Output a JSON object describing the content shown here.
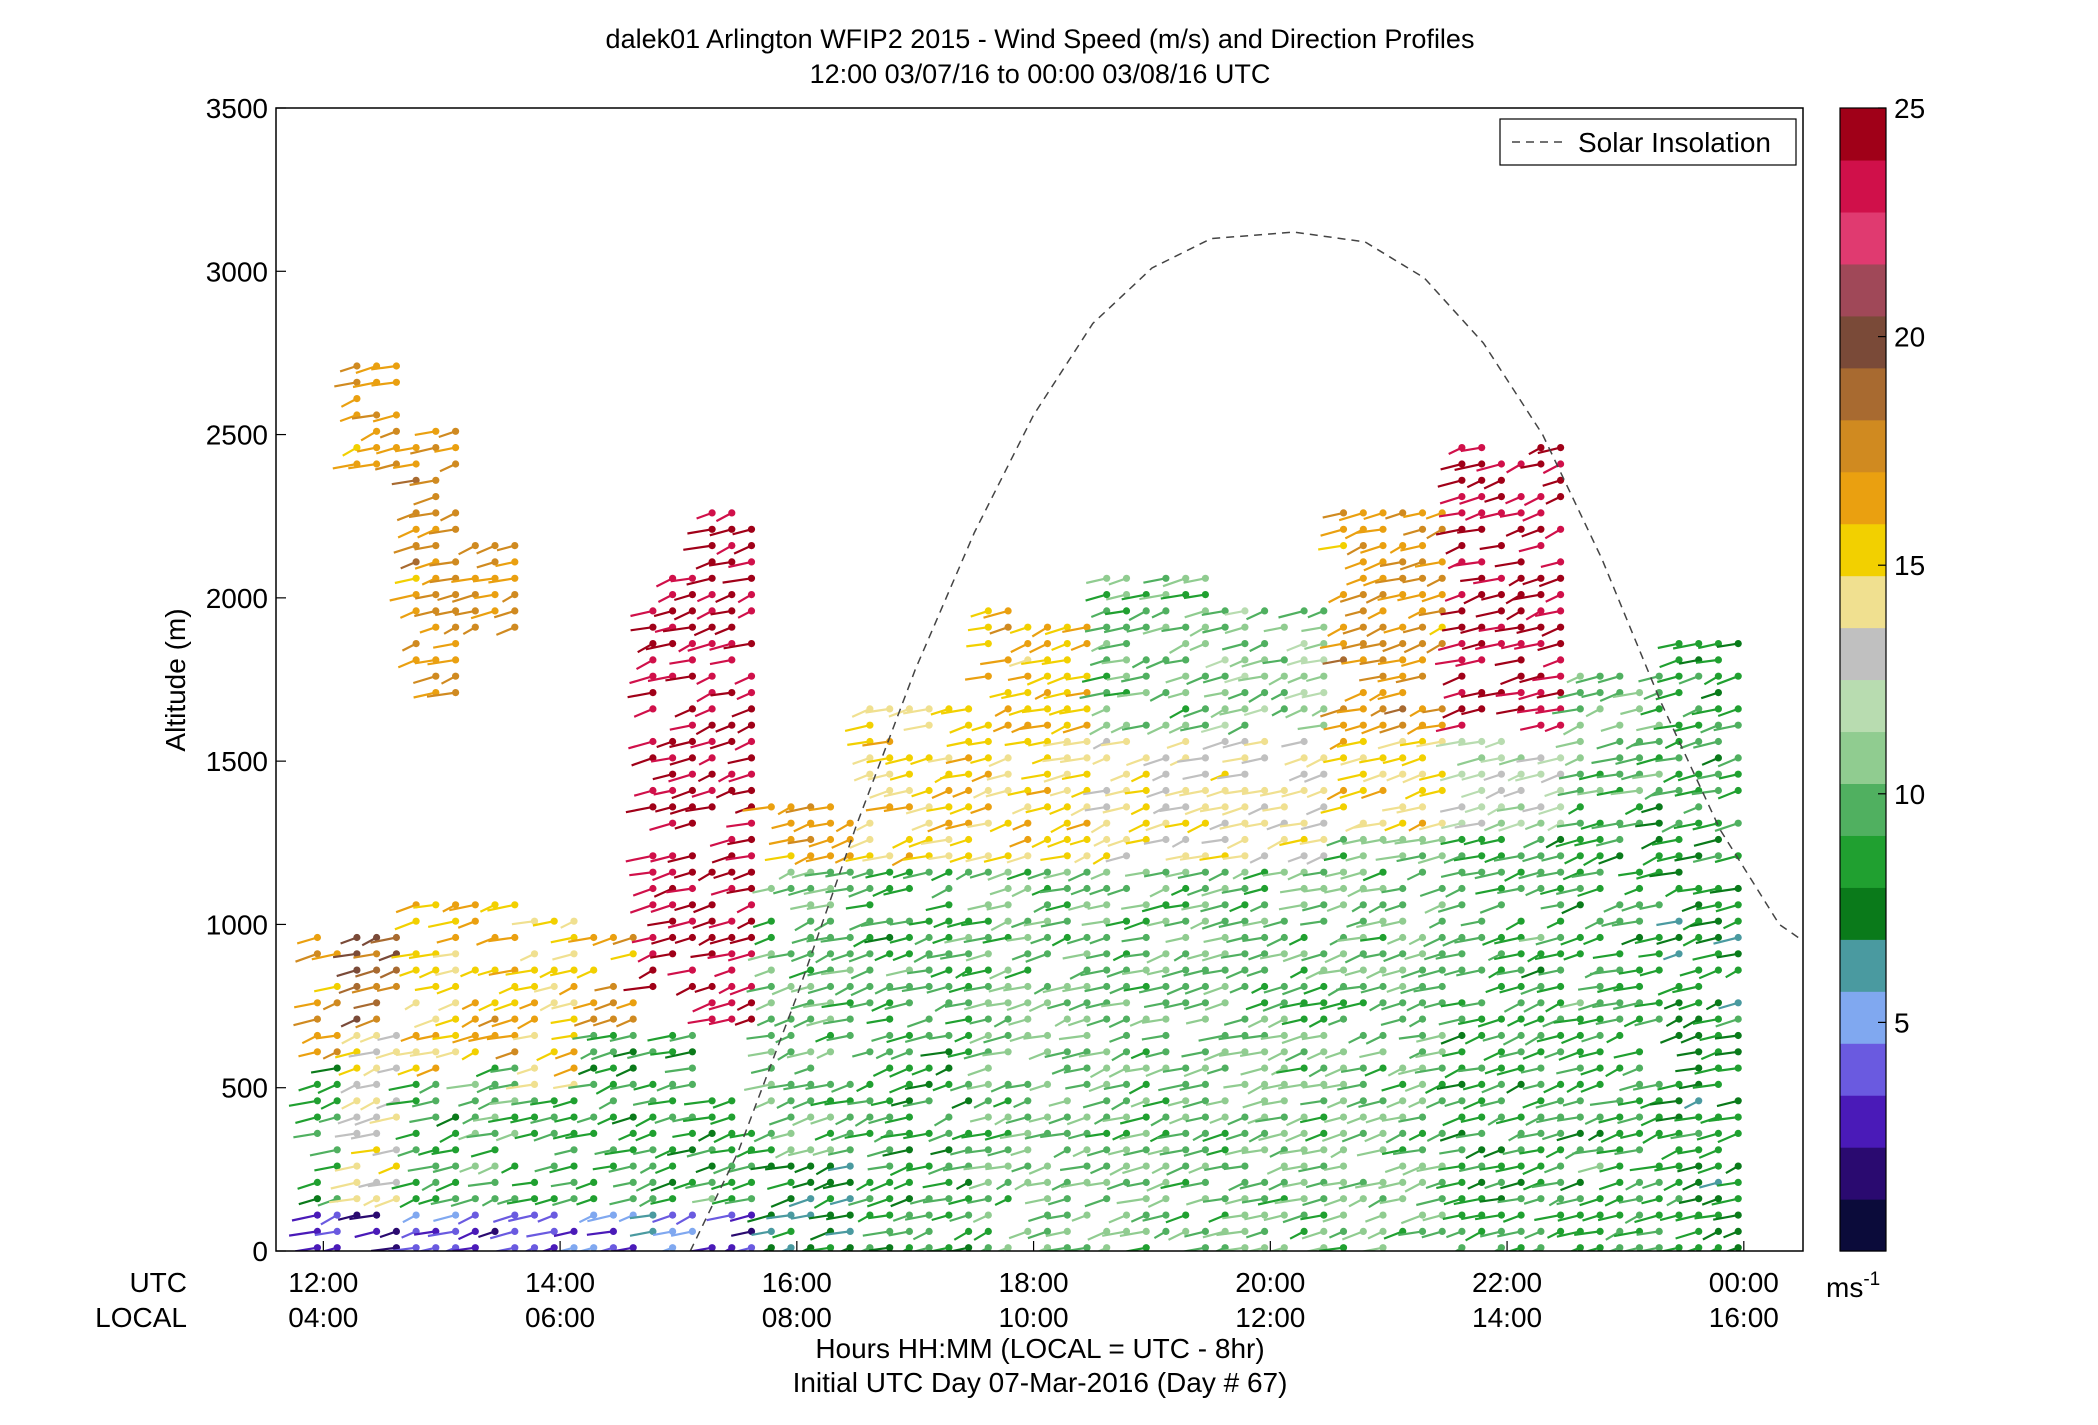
{
  "chart_data": {
    "type": "scatter",
    "title": "dalek01 Arlington WFIP2 2015 - Wind Speed (m/s) and Direction Profiles",
    "subtitle": "12:00 03/07/16 to 00:00 03/08/16  UTC",
    "ylabel": "Altitude (m)",
    "xlabel_line1": "Hours HH:MM  (LOCAL = UTC - 8hr)",
    "xlabel_line2": "Initial UTC Day 07-Mar-2016 (Day # 67)",
    "xrow_labels": {
      "utc": "UTC",
      "local": "LOCAL"
    },
    "ylim": [
      0,
      3500
    ],
    "xlim_hours_utc": [
      11.6,
      24.5
    ],
    "yticks": [
      "0",
      "500",
      "1000",
      "1500",
      "2000",
      "2500",
      "3000",
      "3500"
    ],
    "ytick_values": [
      0,
      500,
      1000,
      1500,
      2000,
      2500,
      3000,
      3500
    ],
    "xtick_hours": [
      12,
      14,
      16,
      18,
      20,
      22,
      24
    ],
    "xticks_utc": [
      "12:00",
      "14:00",
      "16:00",
      "18:00",
      "20:00",
      "22:00",
      "00:00"
    ],
    "xticks_local": [
      "04:00",
      "06:00",
      "08:00",
      "10:00",
      "12:00",
      "14:00",
      "16:00"
    ],
    "legend": {
      "label": "Solar Insolation",
      "placement": "top-right"
    },
    "colorbar": {
      "range": [
        0,
        25
      ],
      "ticks": [
        "5",
        "10",
        "15",
        "20",
        "25"
      ],
      "tick_values": [
        5,
        10,
        15,
        20,
        25
      ],
      "unit": "ms",
      "unit_exp": "-1",
      "colors": [
        "#0b0b3a",
        "#2a0a70",
        "#4a1ab8",
        "#6a5ae0",
        "#80a8f0",
        "#4a9aa0",
        "#0a7a1a",
        "#20a030",
        "#50b060",
        "#90cc90",
        "#b8dcb0",
        "#c0c0c0",
        "#f0e090",
        "#f2d000",
        "#eaa010",
        "#d08a20",
        "#a86a30",
        "#7a4a38",
        "#a04858",
        "#e03a70",
        "#d0104a",
        "#a00018"
      ]
    },
    "solar_insolation": {
      "style": "dashed",
      "points": [
        {
          "x": 15.1,
          "y": 0
        },
        {
          "x": 15.5,
          "y": 300
        },
        {
          "x": 16.0,
          "y": 780
        },
        {
          "x": 16.5,
          "y": 1300
        },
        {
          "x": 17.0,
          "y": 1780
        },
        {
          "x": 17.5,
          "y": 2200
        },
        {
          "x": 18.0,
          "y": 2560
        },
        {
          "x": 18.5,
          "y": 2840
        },
        {
          "x": 19.0,
          "y": 3010
        },
        {
          "x": 19.5,
          "y": 3100
        },
        {
          "x": 20.2,
          "y": 3120
        },
        {
          "x": 20.8,
          "y": 3090
        },
        {
          "x": 21.3,
          "y": 2980
        },
        {
          "x": 21.8,
          "y": 2780
        },
        {
          "x": 22.3,
          "y": 2500
        },
        {
          "x": 22.8,
          "y": 2120
        },
        {
          "x": 23.3,
          "y": 1680
        },
        {
          "x": 23.8,
          "y": 1290
        },
        {
          "x": 24.3,
          "y": 1000
        },
        {
          "x": 24.5,
          "y": 950
        }
      ]
    },
    "series": [
      {
        "note_free": true,
        "profiles": [
          {
            "x": 12.0,
            "bands": [
              [
                0,
                150,
                3
              ],
              [
                150,
                600,
                9
              ],
              [
                600,
                1000,
                17
              ]
            ]
          },
          {
            "x": 12.5,
            "bands": [
              [
                0,
                150,
                3
              ],
              [
                150,
                700,
                14
              ],
              [
                700,
                1000,
                19
              ],
              [
                2400,
                2750,
                17
              ]
            ]
          },
          {
            "x": 13.0,
            "bands": [
              [
                0,
                150,
                4
              ],
              [
                150,
                550,
                9
              ],
              [
                550,
                1100,
                15
              ],
              [
                1700,
                2550,
                17
              ]
            ]
          },
          {
            "x": 13.5,
            "bands": [
              [
                0,
                150,
                3
              ],
              [
                150,
                600,
                10
              ],
              [
                600,
                1100,
                16
              ],
              [
                1900,
                2200,
                17
              ]
            ]
          },
          {
            "x": 14.0,
            "bands": [
              [
                0,
                150,
                4
              ],
              [
                150,
                500,
                9
              ],
              [
                500,
                1050,
                15
              ]
            ]
          },
          {
            "x": 14.5,
            "bands": [
              [
                0,
                150,
                4
              ],
              [
                150,
                700,
                9
              ],
              [
                700,
                1000,
                17
              ]
            ]
          },
          {
            "x": 15.0,
            "bands": [
              [
                0,
                150,
                5
              ],
              [
                150,
                700,
                9
              ],
              [
                800,
                2100,
                24
              ]
            ]
          },
          {
            "x": 15.5,
            "bands": [
              [
                0,
                150,
                3
              ],
              [
                150,
                500,
                9
              ],
              [
                700,
                2300,
                24
              ]
            ]
          },
          {
            "x": 16.0,
            "bands": [
              [
                0,
                300,
                7
              ],
              [
                300,
                1200,
                10
              ],
              [
                1200,
                1400,
                17
              ]
            ]
          },
          {
            "x": 17.0,
            "bands": [
              [
                0,
                1200,
                9
              ],
              [
                1200,
                1700,
                15
              ]
            ]
          },
          {
            "x": 18.0,
            "bands": [
              [
                0,
                1200,
                10
              ],
              [
                1200,
                1600,
                15
              ],
              [
                1600,
                2000,
                16
              ]
            ]
          },
          {
            "x": 19.0,
            "bands": [
              [
                0,
                1200,
                10
              ],
              [
                1200,
                1600,
                14
              ],
              [
                1600,
                2100,
                10
              ]
            ]
          },
          {
            "x": 20.0,
            "bands": [
              [
                0,
                1200,
                10
              ],
              [
                1200,
                1600,
                14
              ],
              [
                1600,
                2000,
                11
              ]
            ]
          },
          {
            "x": 21.0,
            "bands": [
              [
                0,
                1300,
                10
              ],
              [
                1300,
                1600,
                15
              ],
              [
                1600,
                2300,
                17
              ]
            ]
          },
          {
            "x": 22.0,
            "bands": [
              [
                0,
                1300,
                9
              ],
              [
                1300,
                1600,
                12
              ],
              [
                1600,
                2500,
                24
              ]
            ]
          },
          {
            "x": 23.0,
            "bands": [
              [
                0,
                1400,
                9
              ],
              [
                1400,
                1800,
                10
              ]
            ]
          },
          {
            "x": 23.9,
            "bands": [
              [
                0,
                1300,
                8
              ],
              [
                1300,
                1900,
                9
              ]
            ]
          }
        ]
      }
    ]
  }
}
